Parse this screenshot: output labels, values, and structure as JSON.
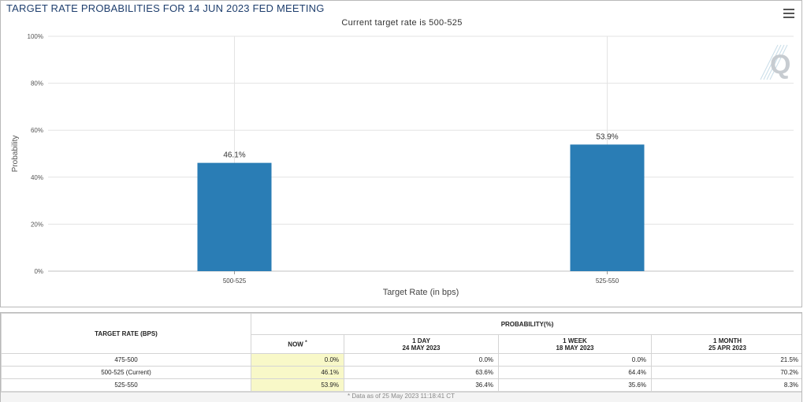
{
  "chart_data": {
    "type": "bar",
    "title": "TARGET RATE PROBABILITIES FOR 14 JUN 2023 FED MEETING",
    "subtitle": "Current target rate is 500-525",
    "categories": [
      "500-525",
      "525-550"
    ],
    "values": [
      46.1,
      53.9
    ],
    "value_labels": [
      "46.1%",
      "53.9%"
    ],
    "xlabel": "Target Rate (in bps)",
    "ylabel": "Probability",
    "ylim": [
      0,
      100
    ],
    "yticks": [
      0,
      20,
      40,
      60,
      80,
      100
    ],
    "ytick_labels": [
      "0%",
      "20%",
      "40%",
      "60%",
      "80%",
      "100%"
    ],
    "grid": true,
    "bar_color": "#2a7db5"
  },
  "table": {
    "rate_header": "TARGET RATE (BPS)",
    "prob_header": "PROBABILITY(%)",
    "now_label": "NOW",
    "now_marker": "*",
    "col_1day": {
      "label": "1 DAY",
      "date": "24 MAY 2023"
    },
    "col_1week": {
      "label": "1 WEEK",
      "date": "18 MAY 2023"
    },
    "col_1month": {
      "label": "1 MONTH",
      "date": "25 APR 2023"
    },
    "rows": [
      {
        "rate": "475-500",
        "now": "0.0%",
        "day": "0.0%",
        "week": "0.0%",
        "month": "21.5%"
      },
      {
        "rate": "500-525 (Current)",
        "now": "46.1%",
        "day": "63.6%",
        "week": "64.4%",
        "month": "70.2%"
      },
      {
        "rate": "525-550",
        "now": "53.9%",
        "day": "36.4%",
        "week": "35.6%",
        "month": "8.3%"
      }
    ],
    "note": "* Data as of 25 May 2023 11:18:41 CT"
  },
  "icons": {
    "menu": "hamburger-menu-icon",
    "watermark": "q-watermark-icon"
  }
}
